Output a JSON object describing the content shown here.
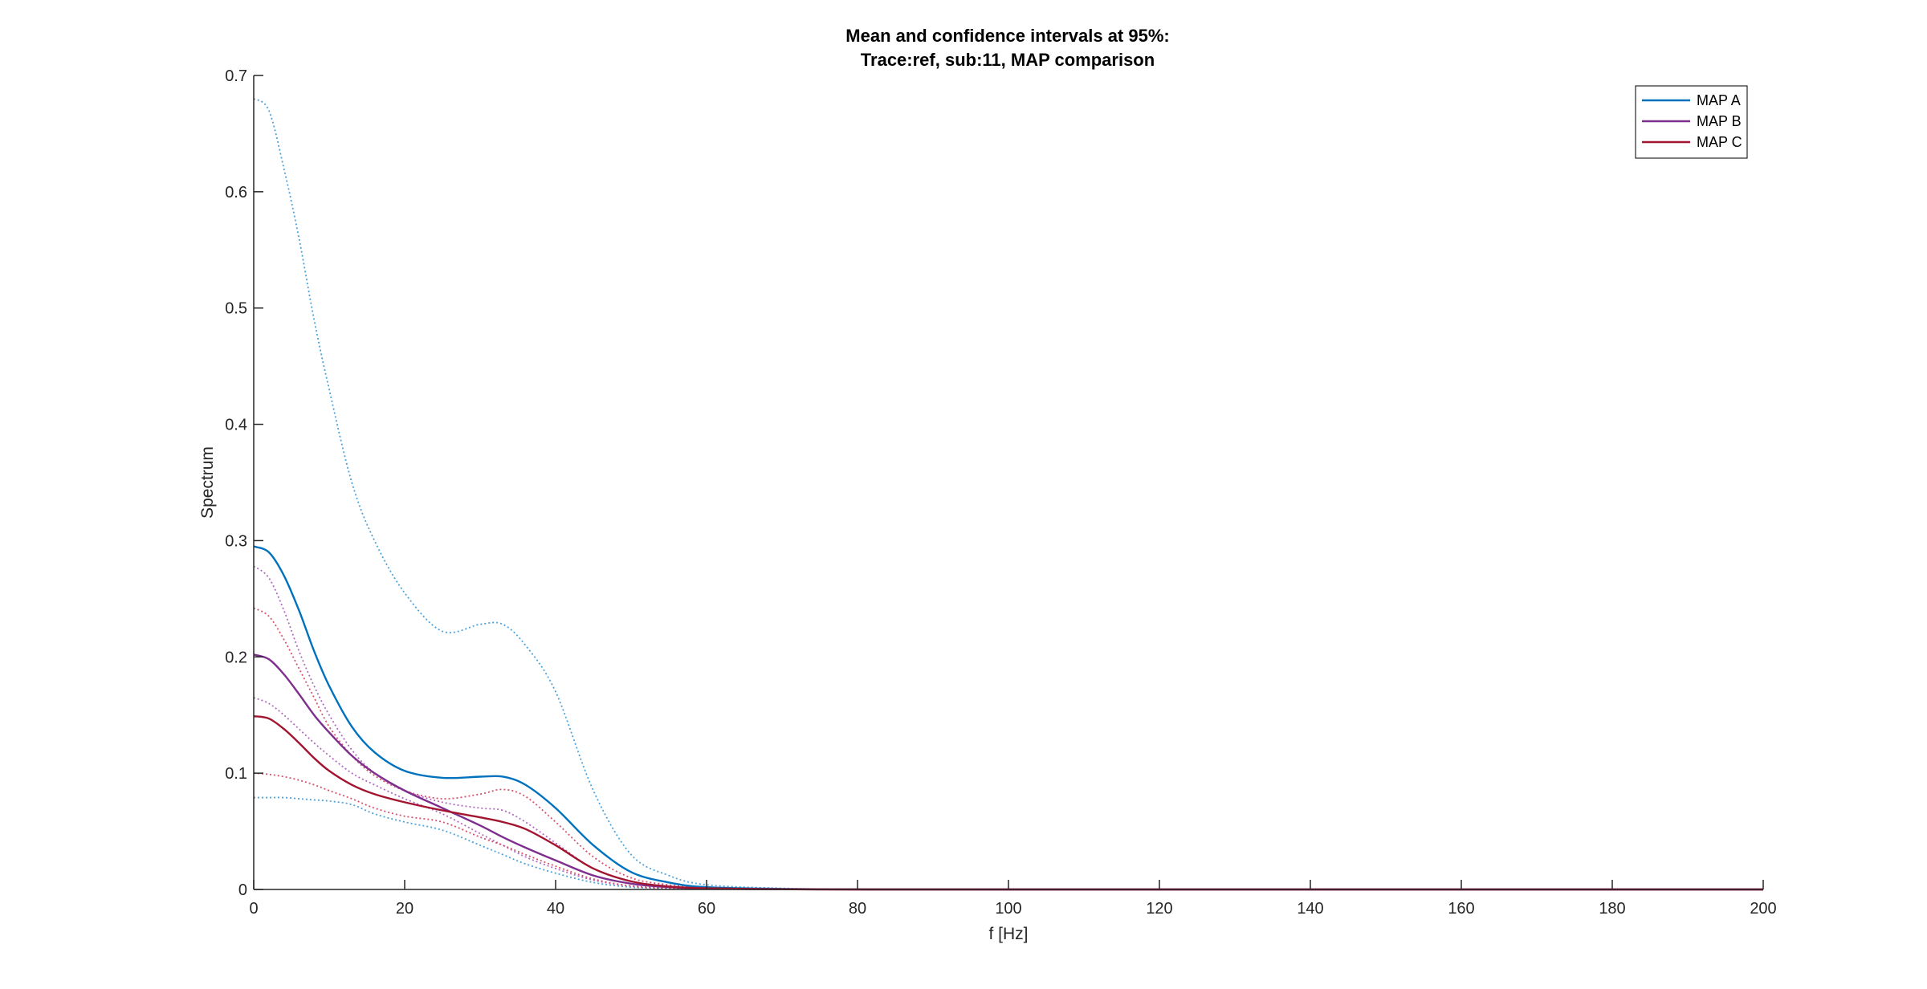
{
  "chart_data": {
    "type": "line",
    "title_lines": [
      "Mean and confidence intervals at 95%:",
      "Trace:ref, sub:11, MAP comparison"
    ],
    "xlabel": "f [Hz]",
    "ylabel": "Spectrum",
    "xlim": [
      0,
      200
    ],
    "ylim": [
      0,
      0.7
    ],
    "xticks": [
      0,
      20,
      40,
      60,
      80,
      100,
      120,
      140,
      160,
      180,
      200
    ],
    "yticks": [
      0,
      0.1,
      0.2,
      0.3,
      0.4,
      0.5,
      0.6,
      0.7
    ],
    "xtick_labels": [
      "0",
      "20",
      "40",
      "60",
      "80",
      "100",
      "120",
      "140",
      "160",
      "180",
      "200"
    ],
    "ytick_labels": [
      "0",
      "0.1",
      "0.2",
      "0.3",
      "0.4",
      "0.5",
      "0.6",
      "0.7"
    ],
    "grid": false,
    "legend_position": "top-right",
    "x": [
      0,
      2,
      4,
      6,
      8,
      10,
      13,
      16,
      20,
      25,
      30,
      33,
      36,
      40,
      45,
      50,
      55,
      60,
      70,
      80,
      100,
      150,
      200
    ],
    "series": [
      {
        "name": "MAP A",
        "color": "#0072BD",
        "style": "solid",
        "in_legend": true,
        "values": [
          0.295,
          0.29,
          0.27,
          0.24,
          0.205,
          0.175,
          0.14,
          0.118,
          0.102,
          0.096,
          0.097,
          0.097,
          0.09,
          0.07,
          0.038,
          0.015,
          0.006,
          0.002,
          0.0005,
          0.0001,
          0,
          0,
          0
        ]
      },
      {
        "name": "MAP B",
        "color": "#7E2F8E",
        "style": "solid",
        "in_legend": true,
        "values": [
          0.202,
          0.198,
          0.185,
          0.168,
          0.15,
          0.135,
          0.115,
          0.1,
          0.085,
          0.07,
          0.055,
          0.045,
          0.036,
          0.025,
          0.012,
          0.005,
          0.002,
          0.0007,
          0.0002,
          0,
          0,
          0,
          0
        ]
      },
      {
        "name": "MAP C",
        "color": "#A2142F",
        "style": "solid",
        "in_legend": true,
        "values": [
          0.149,
          0.147,
          0.138,
          0.126,
          0.113,
          0.102,
          0.09,
          0.082,
          0.075,
          0.068,
          0.062,
          0.058,
          0.052,
          0.038,
          0.018,
          0.007,
          0.0025,
          0.001,
          0.0002,
          0,
          0,
          0,
          0
        ]
      },
      {
        "name": "",
        "color": "#4DA3DB",
        "style": "dotted",
        "in_legend": false,
        "values": [
          0.68,
          0.67,
          0.62,
          0.56,
          0.49,
          0.43,
          0.35,
          0.3,
          0.255,
          0.222,
          0.228,
          0.228,
          0.21,
          0.17,
          0.085,
          0.03,
          0.012,
          0.004,
          0.001,
          0.0002,
          0,
          0,
          0
        ]
      },
      {
        "name": "",
        "color": "#4DA3DB",
        "style": "dotted",
        "in_legend": false,
        "values": [
          0.079,
          0.079,
          0.079,
          0.078,
          0.077,
          0.076,
          0.073,
          0.065,
          0.058,
          0.051,
          0.038,
          0.03,
          0.022,
          0.014,
          0.006,
          0.002,
          0.001,
          0.0003,
          0,
          0,
          0,
          0,
          0
        ]
      },
      {
        "name": "",
        "color": "#B06BC0",
        "style": "dotted",
        "in_legend": false,
        "values": [
          0.278,
          0.268,
          0.24,
          0.205,
          0.175,
          0.15,
          0.12,
          0.1,
          0.085,
          0.075,
          0.07,
          0.068,
          0.058,
          0.04,
          0.018,
          0.007,
          0.003,
          0.001,
          0.0002,
          0,
          0,
          0,
          0
        ]
      },
      {
        "name": "",
        "color": "#B06BC0",
        "style": "dotted",
        "in_legend": false,
        "values": [
          0.165,
          0.16,
          0.15,
          0.138,
          0.126,
          0.115,
          0.1,
          0.09,
          0.078,
          0.065,
          0.048,
          0.038,
          0.028,
          0.018,
          0.008,
          0.003,
          0.001,
          0.0004,
          0,
          0,
          0,
          0,
          0
        ]
      },
      {
        "name": "",
        "color": "#D5546D",
        "style": "dotted",
        "in_legend": false,
        "values": [
          0.242,
          0.235,
          0.215,
          0.19,
          0.165,
          0.14,
          0.115,
          0.098,
          0.085,
          0.078,
          0.082,
          0.086,
          0.08,
          0.058,
          0.028,
          0.01,
          0.004,
          0.0015,
          0.0003,
          0,
          0,
          0,
          0
        ]
      },
      {
        "name": "",
        "color": "#D5546D",
        "style": "dotted",
        "in_legend": false,
        "values": [
          0.1,
          0.099,
          0.097,
          0.094,
          0.09,
          0.085,
          0.078,
          0.07,
          0.063,
          0.058,
          0.045,
          0.038,
          0.03,
          0.02,
          0.009,
          0.003,
          0.001,
          0.0004,
          0,
          0,
          0,
          0,
          0
        ]
      }
    ]
  }
}
